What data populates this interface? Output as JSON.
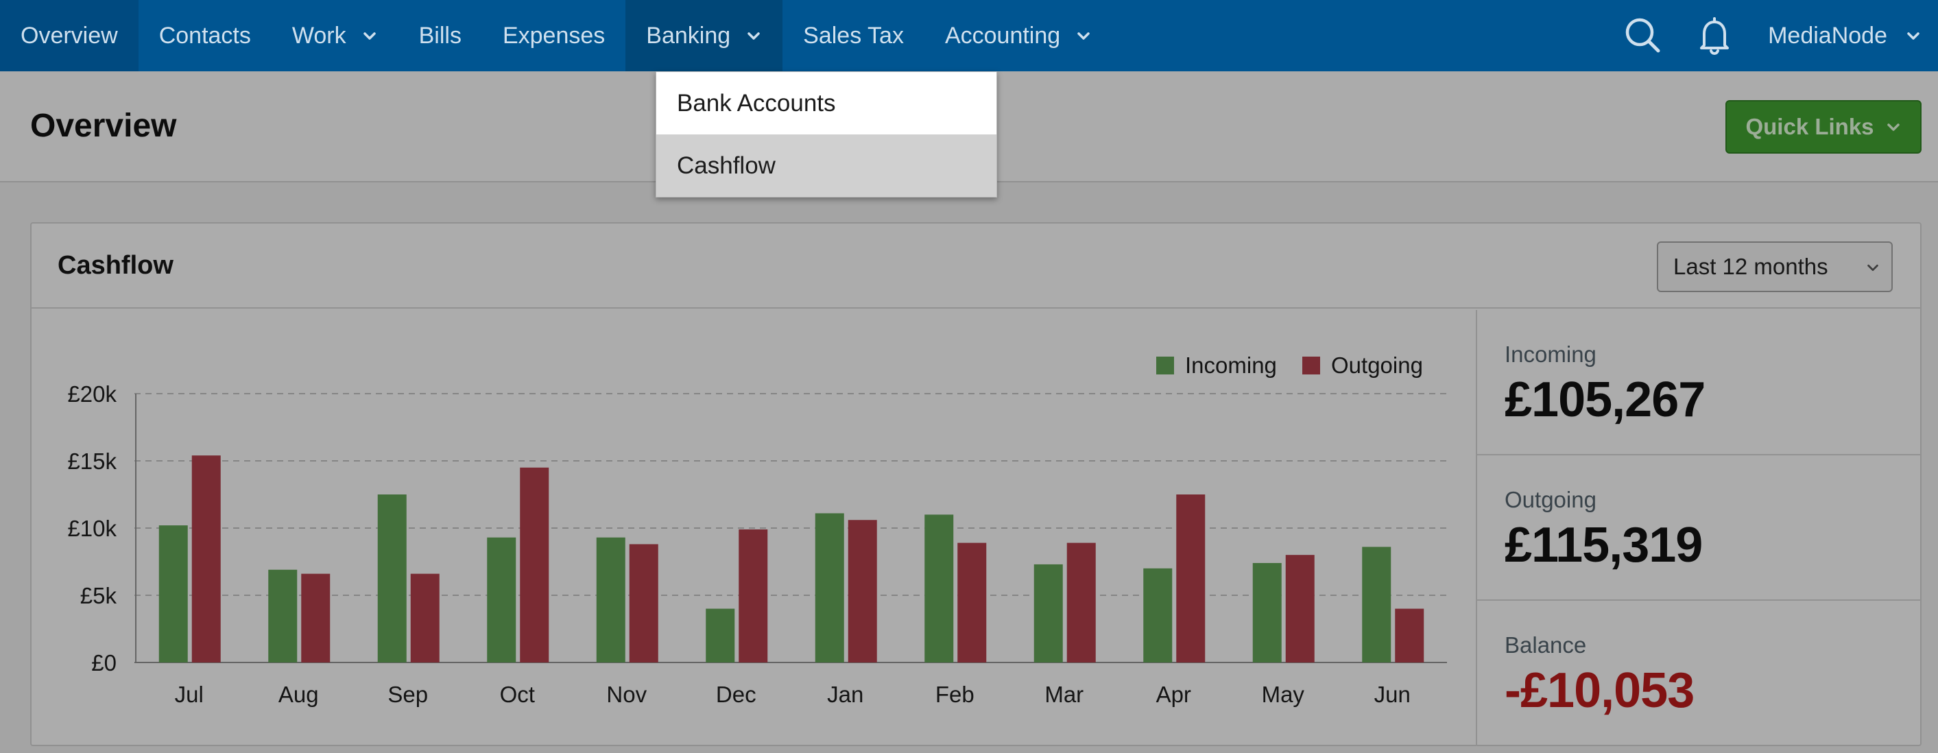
{
  "nav": {
    "items": [
      {
        "label": "Overview",
        "has_menu": false,
        "state": "active"
      },
      {
        "label": "Contacts",
        "has_menu": false,
        "state": ""
      },
      {
        "label": "Work",
        "has_menu": true,
        "state": ""
      },
      {
        "label": "Bills",
        "has_menu": false,
        "state": ""
      },
      {
        "label": "Expenses",
        "has_menu": false,
        "state": ""
      },
      {
        "label": "Banking",
        "has_menu": true,
        "state": "open"
      },
      {
        "label": "Sales Tax",
        "has_menu": false,
        "state": ""
      },
      {
        "label": "Accounting",
        "has_menu": true,
        "state": ""
      }
    ],
    "search_icon": "search-icon",
    "notifications_icon": "bell-icon",
    "account_label": "MediaNode"
  },
  "dropdown": {
    "items": [
      {
        "label": "Bank Accounts",
        "hovered": true
      },
      {
        "label": "Cashflow",
        "hovered": false
      }
    ]
  },
  "page": {
    "title": "Overview",
    "quick_links_label": "Quick Links"
  },
  "cashflow": {
    "title": "Cashflow",
    "period": "Last 12 months",
    "stats": [
      {
        "label": "Incoming",
        "value": "£105,267",
        "negative": false
      },
      {
        "label": "Outgoing",
        "value": "£115,319",
        "negative": false
      },
      {
        "label": "Balance",
        "value": "-£10,053",
        "negative": true
      }
    ]
  },
  "colors": {
    "incoming": "#5d9a52",
    "outgoing": "#a83c47",
    "nav_bg": "#005591",
    "quick_links": "#3f9a30",
    "negative": "#b31b1b"
  },
  "chart_data": {
    "type": "bar",
    "categories": [
      "Jul",
      "Aug",
      "Sep",
      "Oct",
      "Nov",
      "Dec",
      "Jan",
      "Feb",
      "Mar",
      "Apr",
      "May",
      "Jun"
    ],
    "series": [
      {
        "name": "Incoming",
        "values": [
          10200,
          6900,
          12500,
          9300,
          9300,
          4000,
          11100,
          11000,
          7300,
          7000,
          7400,
          8600
        ]
      },
      {
        "name": "Outgoing",
        "values": [
          15400,
          6600,
          6600,
          14500,
          8800,
          9900,
          10600,
          8900,
          8900,
          12500,
          8000,
          4000
        ]
      }
    ],
    "yticks": [
      "£0",
      "£5k",
      "£10k",
      "£15k",
      "£20k"
    ],
    "ylim": [
      0,
      20000
    ],
    "grid": true,
    "legend_position": "top-right",
    "title": "",
    "xlabel": "",
    "ylabel": ""
  }
}
